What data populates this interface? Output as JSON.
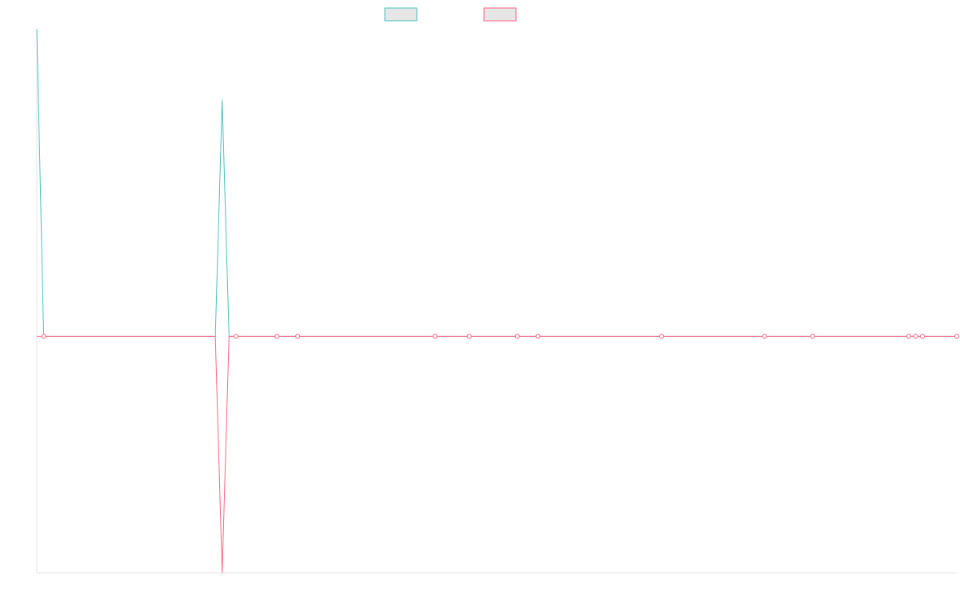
{
  "chart_data": {
    "type": "line",
    "title": "",
    "xlabel": "",
    "ylabel": "",
    "x_count": 135,
    "ylim": [
      -100,
      130
    ],
    "grid": false,
    "legend_placement": "top-center",
    "series": [
      {
        "color": "#4bc0c0",
        "values": [
          130,
          0,
          0,
          0,
          0,
          0,
          0,
          0,
          0,
          0,
          0,
          0,
          0,
          0,
          0,
          0,
          0,
          0,
          0,
          0,
          0,
          0,
          0,
          0,
          0,
          0,
          0,
          100,
          0,
          0,
          0,
          0,
          0,
          0,
          0,
          0,
          0,
          0,
          0,
          0,
          0,
          0,
          0,
          0,
          0,
          0,
          0,
          0,
          0,
          0,
          0,
          0,
          0,
          0,
          0,
          0,
          0,
          0,
          0,
          0,
          0,
          0,
          0,
          0,
          0,
          0,
          0,
          0,
          0,
          0,
          0,
          0,
          0,
          0,
          0,
          0,
          0,
          0,
          0,
          0,
          0,
          0,
          0,
          0,
          0,
          0,
          0,
          0,
          0,
          0,
          0,
          0,
          0,
          0,
          0,
          0,
          0,
          0,
          0,
          0,
          0,
          0,
          0,
          0,
          0,
          0,
          0,
          0,
          0,
          0,
          0,
          0,
          0,
          0,
          0,
          0,
          0,
          0,
          0,
          0,
          0,
          0,
          0,
          0,
          0,
          0,
          0,
          0,
          0,
          0,
          0,
          0,
          0,
          0,
          0
        ],
        "point_indices": [
          1,
          29,
          35,
          38,
          58,
          63,
          70,
          73,
          91,
          106,
          113,
          127,
          128,
          129,
          134
        ]
      },
      {
        "color": "#ff6384",
        "values": [
          0,
          0,
          0,
          0,
          0,
          0,
          0,
          0,
          0,
          0,
          0,
          0,
          0,
          0,
          0,
          0,
          0,
          0,
          0,
          0,
          0,
          0,
          0,
          0,
          0,
          0,
          0,
          -100,
          0,
          0,
          0,
          0,
          0,
          0,
          0,
          0,
          0,
          0,
          0,
          0,
          0,
          0,
          0,
          0,
          0,
          0,
          0,
          0,
          0,
          0,
          0,
          0,
          0,
          0,
          0,
          0,
          0,
          0,
          0,
          0,
          0,
          0,
          0,
          0,
          0,
          0,
          0,
          0,
          0,
          0,
          0,
          0,
          0,
          0,
          0,
          0,
          0,
          0,
          0,
          0,
          0,
          0,
          0,
          0,
          0,
          0,
          0,
          0,
          0,
          0,
          0,
          0,
          0,
          0,
          0,
          0,
          0,
          0,
          0,
          0,
          0,
          0,
          0,
          0,
          0,
          0,
          0,
          0,
          0,
          0,
          0,
          0,
          0,
          0,
          0,
          0,
          0,
          0,
          0,
          0,
          0,
          0,
          0,
          0,
          0,
          0,
          0,
          0,
          0,
          0,
          0,
          0,
          0,
          0,
          0
        ],
        "point_indices": [
          1,
          29,
          35,
          38,
          58,
          63,
          70,
          73,
          91,
          106,
          113,
          127,
          128,
          129,
          134
        ]
      }
    ]
  }
}
